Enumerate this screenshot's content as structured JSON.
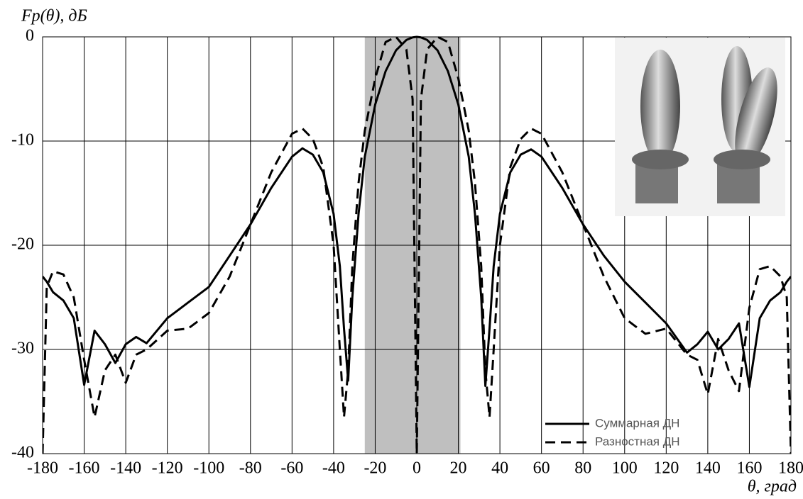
{
  "chart_data": {
    "type": "line",
    "y_label": "Fр(θ), дБ",
    "x_label": "θ, град",
    "x": [
      -180,
      -178,
      -175,
      -170,
      -165,
      -160,
      -155,
      -150,
      -145,
      -140,
      -135,
      -130,
      -120,
      -110,
      -100,
      -90,
      -80,
      -70,
      -60,
      -55,
      -50,
      -45,
      -40,
      -37,
      -35,
      -33,
      -31,
      -28,
      -25,
      -20,
      -15,
      -10,
      -5,
      -2,
      0,
      2,
      5,
      10,
      15,
      20,
      25,
      28,
      31,
      33,
      35,
      37,
      40,
      45,
      50,
      55,
      60,
      70,
      80,
      90,
      100,
      110,
      120,
      130,
      135,
      140,
      145,
      150,
      155,
      160,
      165,
      170,
      175,
      178,
      180
    ],
    "series": [
      {
        "name": "Суммарная ДН",
        "color": "#000000",
        "dash": false,
        "values": [
          -23,
          -23.5,
          -24.5,
          -25.3,
          -27,
          -33.4,
          -28.2,
          -29.5,
          -31.3,
          -29.5,
          -28.8,
          -29.4,
          -27,
          -25.5,
          -24,
          -21,
          -18,
          -14.5,
          -11.5,
          -10.7,
          -11.3,
          -13,
          -17,
          -22,
          -28,
          -33,
          -25,
          -17,
          -11.5,
          -6.5,
          -3.3,
          -1.3,
          -0.3,
          -0.05,
          0,
          -0.05,
          -0.3,
          -1.3,
          -3.3,
          -6.5,
          -11.5,
          -17,
          -25,
          -33.5,
          -28,
          -22,
          -17,
          -13,
          -11.3,
          -10.8,
          -11.5,
          -14.5,
          -18,
          -21,
          -23.5,
          -25.5,
          -27.5,
          -30.3,
          -29.5,
          -28.3,
          -30,
          -29,
          -27.5,
          -33.6,
          -27,
          -25.3,
          -24.5,
          -23.5,
          -23
        ]
      },
      {
        "name": "Разностная ДН",
        "color": "#000000",
        "dash": true,
        "values": [
          -40,
          -24,
          -22.5,
          -22.8,
          -25,
          -31,
          -36.5,
          -32,
          -30.5,
          -33.2,
          -30.5,
          -30,
          -28.2,
          -28,
          -26.5,
          -23,
          -18,
          -13,
          -9.3,
          -8.8,
          -9.8,
          -12.5,
          -20,
          -30,
          -36.5,
          -32,
          -22,
          -14,
          -9,
          -4,
          -0.5,
          0,
          -1.2,
          -6,
          -40,
          -6,
          -1.2,
          0,
          -0.5,
          -4,
          -9,
          -14,
          -22,
          -32,
          -36.5,
          -30,
          -20,
          -12.5,
          -9.8,
          -8.8,
          -9.3,
          -13,
          -18,
          -23,
          -27,
          -28.5,
          -28,
          -30.5,
          -31,
          -34.3,
          -29,
          -32,
          -34,
          -26,
          -22.3,
          -22,
          -23,
          -25,
          -40
        ]
      }
    ],
    "xlim": [
      -180,
      180
    ],
    "ylim": [
      -40,
      0
    ],
    "xticks": [
      -180,
      -160,
      -140,
      -120,
      -100,
      -80,
      -60,
      -40,
      -20,
      0,
      20,
      40,
      60,
      80,
      100,
      120,
      140,
      160,
      180
    ],
    "yticks": [
      0,
      -10,
      -20,
      -30,
      -40
    ],
    "grid": true,
    "shaded_region": [
      -25,
      21
    ],
    "legend": "lower right"
  }
}
